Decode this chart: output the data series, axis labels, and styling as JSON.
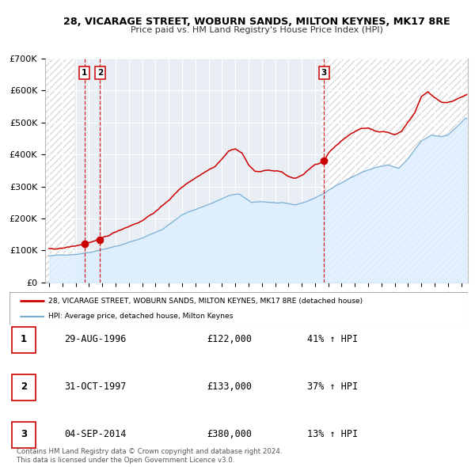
{
  "title": "28, VICARAGE STREET, WOBURN SANDS, MILTON KEYNES, MK17 8RE",
  "subtitle": "Price paid vs. HM Land Registry's House Price Index (HPI)",
  "hpi_label": "HPI: Average price, detached house, Milton Keynes",
  "property_label": "28, VICARAGE STREET, WOBURN SANDS, MILTON KEYNES, MK17 8RE (detached house)",
  "footer1": "Contains HM Land Registry data © Crown copyright and database right 2024.",
  "footer2": "This data is licensed under the Open Government Licence v3.0.",
  "sales": [
    {
      "num": 1,
      "date": "29-AUG-1996",
      "price": 122000,
      "year": 1996.66,
      "hpi_rel": "41% ↑ HPI"
    },
    {
      "num": 2,
      "date": "31-OCT-1997",
      "price": 133000,
      "year": 1997.83,
      "hpi_rel": "37% ↑ HPI"
    },
    {
      "num": 3,
      "date": "04-SEP-2014",
      "price": 380000,
      "year": 2014.67,
      "hpi_rel": "13% ↑ HPI"
    }
  ],
  "property_color": "#cc0000",
  "hpi_color": "#7aafd4",
  "hpi_fill_color": "#ddeeff",
  "hatch_color": "#cccccc",
  "grid_color": "#ffffff",
  "bg_color": "#e8eef4",
  "ylim": [
    0,
    700000
  ],
  "xlim_start": 1993.7,
  "xlim_end": 2025.5,
  "hatch_left_end": 1995.92,
  "hatch_right_start": 2014.5,
  "xticks": [
    1994,
    1995,
    1996,
    1997,
    1998,
    1999,
    2000,
    2001,
    2002,
    2003,
    2004,
    2005,
    2006,
    2007,
    2008,
    2009,
    2010,
    2011,
    2012,
    2013,
    2014,
    2015,
    2016,
    2017,
    2018,
    2019,
    2020,
    2021,
    2022,
    2023,
    2024,
    2025
  ],
  "yticks": [
    0,
    100000,
    200000,
    300000,
    400000,
    500000,
    600000,
    700000
  ],
  "ytick_labels": [
    "£0",
    "£100K",
    "£200K",
    "£300K",
    "£400K",
    "£500K",
    "£600K",
    "£700K"
  ]
}
